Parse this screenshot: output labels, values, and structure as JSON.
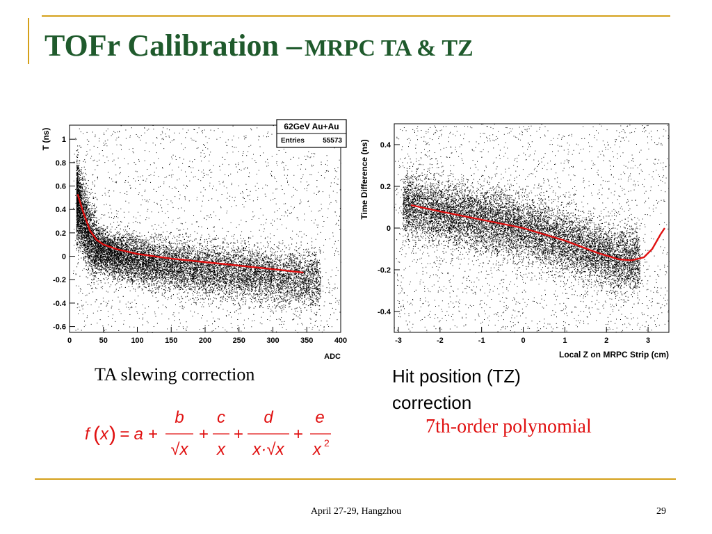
{
  "slide": {
    "title_main": "TOFr Calibration –",
    "title_sub": "MRPC TA & TZ",
    "caption_left": "TA slewing correction",
    "caption_right": "Hit position (TZ) correction",
    "poly_text": "7th-order polynomial",
    "formula": {
      "lhs": "f",
      "arg": "x",
      "eq": "= a +",
      "num1": "b",
      "den1": "√x",
      "num2": "c",
      "den2": "x",
      "num3": "d",
      "den3": "x·√x",
      "num4": "e",
      "den4": "x",
      "exp4": "2",
      "plus": "+"
    },
    "footer": "April 27-29, Hangzhou",
    "page_number": "29",
    "accent_color": "#d4a019",
    "title_color": "#1f5a2c",
    "fit_color": "#e01010"
  },
  "chart_data": [
    {
      "type": "scatter",
      "xlabel": "ADC",
      "ylabel": "T (ns)",
      "xlim": [
        0,
        400
      ],
      "ylim": [
        -0.65,
        1.12
      ],
      "x_ticks": [
        0,
        50,
        100,
        150,
        200,
        250,
        300,
        350,
        400
      ],
      "y_ticks": [
        -0.6,
        -0.4,
        -0.2,
        0,
        0.2,
        0.4,
        0.6,
        0.8,
        1
      ],
      "stats_box": {
        "title": "62GeV Au+Au",
        "entries_label": "Entries",
        "entries_value": "55573"
      },
      "fit": {
        "name": "slewing fit",
        "x": [
          12,
          20,
          30,
          40,
          50,
          70,
          100,
          150,
          200,
          250,
          300,
          345
        ],
        "y": [
          0.53,
          0.38,
          0.22,
          0.14,
          0.1,
          0.06,
          0.02,
          -0.02,
          -0.05,
          -0.08,
          -0.11,
          -0.14
        ]
      }
    },
    {
      "type": "scatter",
      "xlabel": "Local Z on MRPC Strip (cm)",
      "ylabel": "Time Difference (ns)",
      "xlim": [
        -3.1,
        3.5
      ],
      "ylim": [
        -0.5,
        0.5
      ],
      "x_ticks": [
        -3,
        -2,
        -1,
        0,
        1,
        2,
        3
      ],
      "y_ticks": [
        -0.4,
        -0.2,
        0,
        0.2,
        0.4
      ],
      "fit": {
        "name": "7th-order polynomial",
        "x": [
          -2.7,
          -2.0,
          -1.0,
          0.0,
          1.0,
          1.8,
          2.3,
          2.6,
          2.9,
          3.1,
          3.3,
          3.4
        ],
        "y": [
          0.11,
          0.08,
          0.04,
          0.0,
          -0.06,
          -0.12,
          -0.15,
          -0.155,
          -0.14,
          -0.1,
          -0.03,
          0.0
        ]
      }
    }
  ]
}
